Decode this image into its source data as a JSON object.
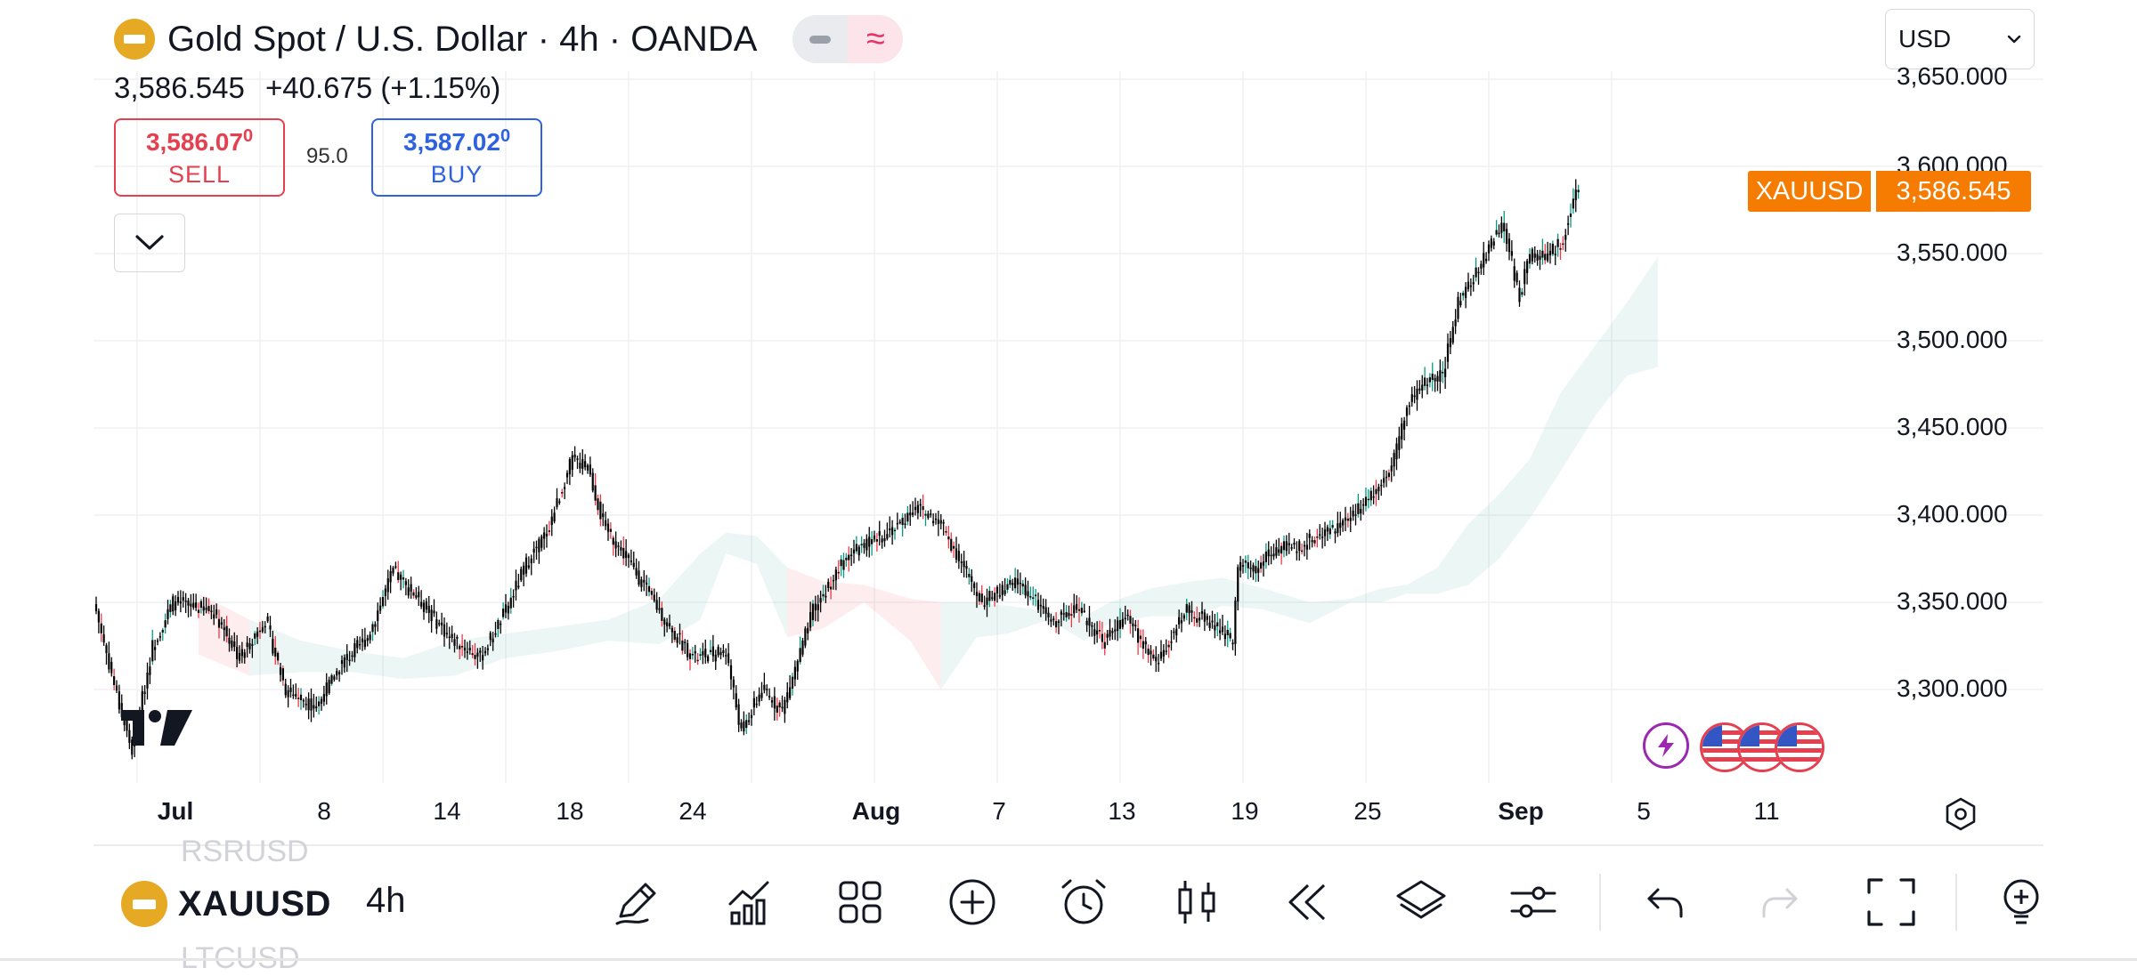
{
  "header": {
    "title": "Gold Spot / U.S. Dollar · 4h · OANDA",
    "last": "3,586.545",
    "change": "+40.675 (+1.15%)",
    "sell": {
      "price_main": "3,586.07",
      "price_sup": "0",
      "label": "SELL"
    },
    "spread": "95.0",
    "buy": {
      "price_main": "3,587.02",
      "price_sup": "0",
      "label": "BUY"
    }
  },
  "currency": {
    "selected": "USD"
  },
  "price_tag": {
    "symbol": "XAUUSD",
    "price": "3,586.545"
  },
  "colors": {
    "up": "#089981",
    "down": "#f23645",
    "candle": "#000000",
    "accent": "#f57c00",
    "sell": "#e5404f",
    "buy": "#2e62e0"
  },
  "chart_data": {
    "type": "candlestick",
    "title": "Gold Spot / U.S. Dollar · 4h · OANDA",
    "symbol": "XAUUSD",
    "interval": "4h",
    "x_ticks": [
      "Jul",
      "8",
      "14",
      "18",
      "24",
      "Aug",
      "7",
      "13",
      "19",
      "25",
      "Sep",
      "5",
      "11"
    ],
    "x_tick_idx": [
      16,
      64,
      112,
      160,
      208,
      256,
      304,
      352,
      400,
      448,
      496,
      544,
      592
    ],
    "y_ticks": [
      "3,300.000",
      "3,350.000",
      "3,400.000",
      "3,450.000",
      "3,500.000",
      "3,550.000",
      "3,600.000",
      "3,650.000"
    ],
    "y_tick_values": [
      3300,
      3350,
      3400,
      3450,
      3500,
      3550,
      3600,
      3650
    ],
    "ylim": [
      3230,
      3660
    ],
    "grid": true,
    "last_price": 3586.545,
    "close_path": [
      [
        0,
        3345
      ],
      [
        10,
        3285
      ],
      [
        14,
        3265
      ],
      [
        22,
        3325
      ],
      [
        30,
        3350
      ],
      [
        46,
        3345
      ],
      [
        56,
        3318
      ],
      [
        66,
        3340
      ],
      [
        74,
        3300
      ],
      [
        86,
        3290
      ],
      [
        96,
        3315
      ],
      [
        106,
        3330
      ],
      [
        116,
        3368
      ],
      [
        126,
        3352
      ],
      [
        138,
        3330
      ],
      [
        150,
        3318
      ],
      [
        160,
        3345
      ],
      [
        168,
        3372
      ],
      [
        176,
        3390
      ],
      [
        186,
        3432
      ],
      [
        192,
        3428
      ],
      [
        198,
        3395
      ],
      [
        206,
        3378
      ],
      [
        214,
        3360
      ],
      [
        224,
        3335
      ],
      [
        234,
        3318
      ],
      [
        246,
        3322
      ],
      [
        252,
        3275
      ],
      [
        260,
        3300
      ],
      [
        268,
        3288
      ],
      [
        280,
        3345
      ],
      [
        294,
        3378
      ],
      [
        304,
        3385
      ],
      [
        314,
        3395
      ],
      [
        320,
        3405
      ],
      [
        330,
        3395
      ],
      [
        336,
        3378
      ],
      [
        346,
        3350
      ],
      [
        360,
        3362
      ],
      [
        374,
        3338
      ],
      [
        382,
        3348
      ],
      [
        394,
        3328
      ],
      [
        402,
        3342
      ],
      [
        414,
        3315
      ],
      [
        426,
        3345
      ],
      [
        436,
        3338
      ],
      [
        444,
        3328
      ],
      [
        446,
        3372
      ],
      [
        452,
        3368
      ],
      [
        460,
        3380
      ],
      [
        470,
        3382
      ],
      [
        482,
        3392
      ],
      [
        490,
        3398
      ],
      [
        498,
        3412
      ],
      [
        506,
        3428
      ],
      [
        512,
        3462
      ],
      [
        518,
        3475
      ],
      [
        526,
        3480
      ],
      [
        532,
        3522
      ],
      [
        540,
        3540
      ],
      [
        546,
        3560
      ],
      [
        550,
        3565
      ],
      [
        556,
        3525
      ],
      [
        560,
        3550
      ],
      [
        566,
        3548
      ],
      [
        572,
        3555
      ],
      [
        576,
        3575
      ],
      [
        579,
        3586.545
      ]
    ],
    "cloud_lead": [
      [
        40,
        3355,
        3320
      ],
      [
        60,
        3340,
        3308
      ],
      [
        80,
        3328,
        3310
      ],
      [
        100,
        3322,
        3310
      ],
      [
        120,
        3318,
        3306
      ],
      [
        140,
        3328,
        3308
      ],
      [
        160,
        3332,
        3318
      ],
      [
        180,
        3336,
        3322
      ],
      [
        200,
        3340,
        3328
      ],
      [
        220,
        3352,
        3326
      ],
      [
        236,
        3378,
        3340
      ],
      [
        246,
        3390,
        3378
      ],
      [
        258,
        3388,
        3372
      ],
      [
        270,
        3370,
        3330
      ],
      [
        284,
        3362,
        3335
      ],
      [
        300,
        3360,
        3350
      ],
      [
        318,
        3352,
        3328
      ],
      [
        330,
        3350,
        3300
      ],
      [
        344,
        3350,
        3330
      ],
      [
        356,
        3348,
        3332
      ],
      [
        372,
        3345,
        3340
      ],
      [
        386,
        3342,
        3328
      ],
      [
        396,
        3350,
        3338
      ],
      [
        412,
        3358,
        3342
      ],
      [
        428,
        3362,
        3342
      ],
      [
        440,
        3364,
        3348
      ],
      [
        456,
        3358,
        3346
      ],
      [
        474,
        3350,
        3338
      ],
      [
        490,
        3352,
        3350
      ],
      [
        502,
        3358,
        3350
      ],
      [
        512,
        3360,
        3355
      ],
      [
        524,
        3370,
        3355
      ],
      [
        536,
        3395,
        3360
      ],
      [
        548,
        3412,
        3375
      ],
      [
        560,
        3432,
        3398
      ],
      [
        572,
        3470,
        3425
      ],
      [
        586,
        3498,
        3458
      ],
      [
        598,
        3522,
        3480
      ],
      [
        610,
        3548,
        3485
      ]
    ],
    "cloud_lag": [
      [
        40,
        3335,
        3330
      ],
      [
        60,
        3310,
        3308
      ],
      [
        80,
        3318,
        3315
      ],
      [
        100,
        3318,
        3316
      ],
      [
        120,
        3316,
        3315
      ],
      [
        140,
        3316,
        3316
      ],
      [
        160,
        3322,
        3320
      ],
      [
        180,
        3330,
        3330
      ],
      [
        200,
        3334,
        3333
      ],
      [
        220,
        3340,
        3339
      ],
      [
        236,
        3345,
        3344
      ],
      [
        246,
        3384,
        3384
      ],
      [
        258,
        3380,
        3380
      ],
      [
        270,
        3350,
        3348
      ],
      [
        284,
        3345,
        3345
      ],
      [
        300,
        3355,
        3355
      ],
      [
        318,
        3340,
        3340
      ],
      [
        330,
        3325,
        3325
      ],
      [
        344,
        3340,
        3340
      ],
      [
        356,
        3340,
        3340
      ],
      [
        372,
        3342,
        3342
      ],
      [
        386,
        3335,
        3335
      ],
      [
        396,
        3344,
        3344
      ],
      [
        412,
        3350,
        3350
      ],
      [
        428,
        3352,
        3352
      ],
      [
        440,
        3356,
        3356
      ],
      [
        456,
        3352,
        3352
      ],
      [
        474,
        3344,
        3344
      ],
      [
        490,
        3351,
        3351
      ],
      [
        502,
        3354,
        3354
      ],
      [
        512,
        3357,
        3357
      ],
      [
        524,
        3362,
        3362
      ],
      [
        536,
        3375,
        3375
      ],
      [
        548,
        3390,
        3390
      ],
      [
        560,
        3410,
        3410
      ],
      [
        572,
        3442,
        3442
      ],
      [
        586,
        3475,
        3475
      ],
      [
        598,
        3500,
        3500
      ],
      [
        610,
        3510,
        3510
      ]
    ]
  },
  "bottom_bar": {
    "symbol": "XAUUSD",
    "symbol_prev": "RSRUSD",
    "symbol_next": "LTCUSD",
    "interval": "4h"
  }
}
